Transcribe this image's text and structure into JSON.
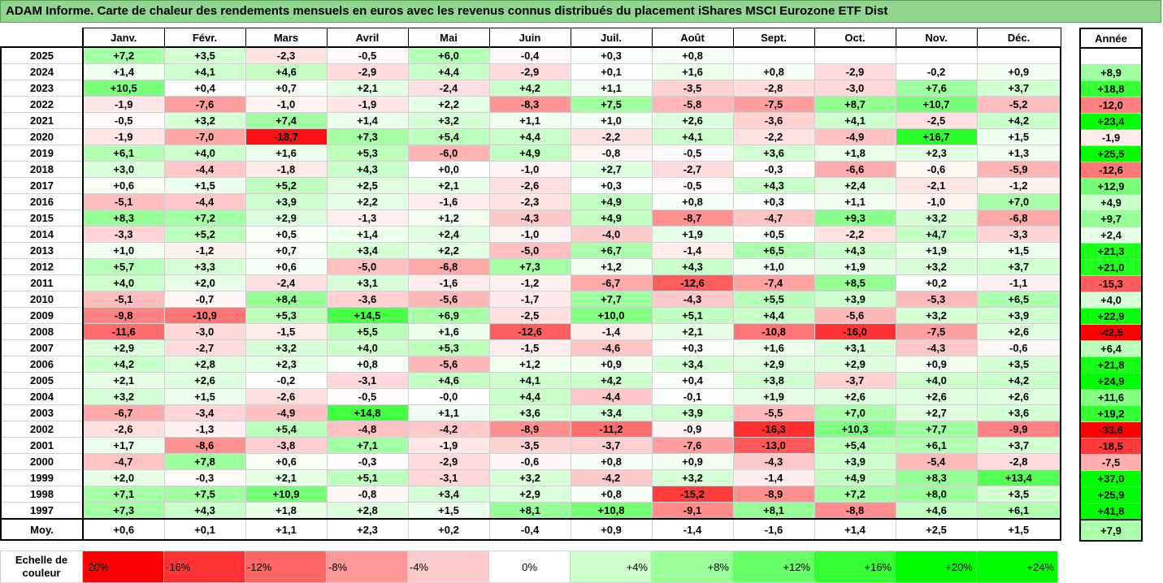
{
  "title": "ADAM Informe. Carte de chaleur des rendements mensuels en euros avec les revenus connus distribués du placement iShares MSCI Eurozone ETF Dist",
  "chart_data": {
    "type": "heatmap",
    "months": [
      "Janv.",
      "Févr.",
      "Mars",
      "Avril",
      "Mai",
      "Juin",
      "Juil.",
      "Août",
      "Sept.",
      "Oct.",
      "Nov.",
      "Déc."
    ],
    "annual_header": "Année",
    "rows": [
      {
        "year": "2025",
        "months": [
          "+7,2",
          "+3,5",
          "-2,3",
          "-0,5",
          "+6,0",
          "-0,4",
          "+0,3",
          "+0,8",
          "",
          "",
          "",
          ""
        ],
        "annual": ""
      },
      {
        "year": "2024",
        "months": [
          "+1,4",
          "+4,1",
          "+4,6",
          "-2,9",
          "+4,4",
          "-2,9",
          "+0,1",
          "+1,6",
          "+0,8",
          "-2,9",
          "-0,2",
          "+0,9"
        ],
        "annual": "+8,9"
      },
      {
        "year": "2023",
        "months": [
          "+10,5",
          "+0,4",
          "+0,7",
          "+2,1",
          "-2,4",
          "+4,2",
          "+1,1",
          "-3,5",
          "-2,8",
          "-3,0",
          "+7,6",
          "+3,7"
        ],
        "annual": "+18,8"
      },
      {
        "year": "2022",
        "months": [
          "-1,9",
          "-7,6",
          "-1,0",
          "-1,9",
          "+2,2",
          "-8,3",
          "+7,5",
          "-5,8",
          "-7,5",
          "+8,7",
          "+10,7",
          "-5,2"
        ],
        "annual": "-12,0"
      },
      {
        "year": "2021",
        "months": [
          "-0,5",
          "+3,2",
          "+7,4",
          "+1,4",
          "+3,2",
          "+1,1",
          "+1,0",
          "+2,6",
          "-3,6",
          "+4,1",
          "-2,5",
          "+4,2"
        ],
        "annual": "+23,4"
      },
      {
        "year": "2020",
        "months": [
          "-1,9",
          "-7,0",
          "-18,7",
          "+7,3",
          "+5,4",
          "+4,4",
          "-2,2",
          "+4,1",
          "-2,2",
          "-4,9",
          "+16,7",
          "+1,5"
        ],
        "annual": "-1,9"
      },
      {
        "year": "2019",
        "months": [
          "+6,1",
          "+4,0",
          "+1,6",
          "+5,3",
          "-6,0",
          "+4,9",
          "-0,8",
          "-0,5",
          "+3,6",
          "+1,8",
          "+2,3",
          "+1,3"
        ],
        "annual": "+25,5"
      },
      {
        "year": "2018",
        "months": [
          "+3,0",
          "-4,4",
          "-1,8",
          "+4,3",
          "+0,0",
          "-1,0",
          "+2,7",
          "-2,7",
          "-0,3",
          "-6,6",
          "-0,6",
          "-5,9"
        ],
        "annual": "-12,6"
      },
      {
        "year": "2017",
        "months": [
          "+0,6",
          "+1,5",
          "+5,2",
          "+2,5",
          "+2,1",
          "-2,6",
          "+0,3",
          "-0,5",
          "+4,3",
          "+2,4",
          "-2,1",
          "-1,2"
        ],
        "annual": "+12,9"
      },
      {
        "year": "2016",
        "months": [
          "-5,1",
          "-4,4",
          "+3,9",
          "+2,2",
          "-1,6",
          "-2,3",
          "+4,9",
          "+0,8",
          "+0,3",
          "+1,1",
          "-1,0",
          "+7,0"
        ],
        "annual": "+4,9"
      },
      {
        "year": "2015",
        "months": [
          "+8,3",
          "+7,2",
          "+2,9",
          "-1,3",
          "+1,2",
          "-4,3",
          "+4,9",
          "-8,7",
          "-4,7",
          "+9,3",
          "+3,2",
          "-6,8"
        ],
        "annual": "+9,7"
      },
      {
        "year": "2014",
        "months": [
          "-3,3",
          "+5,2",
          "+0,5",
          "+1,4",
          "+2,4",
          "-1,0",
          "-4,0",
          "+1,9",
          "+0,5",
          "-2,2",
          "+4,7",
          "-3,3"
        ],
        "annual": "+2,4"
      },
      {
        "year": "2013",
        "months": [
          "+1,0",
          "-1,2",
          "+0,7",
          "+3,4",
          "+2,2",
          "-5,0",
          "+6,7",
          "-1,4",
          "+6,5",
          "+4,3",
          "+1,9",
          "+1,5"
        ],
        "annual": "+21,3"
      },
      {
        "year": "2012",
        "months": [
          "+5,7",
          "+3,3",
          "+0,6",
          "-5,0",
          "-6,8",
          "+7,3",
          "+1,2",
          "+4,3",
          "+1,0",
          "+1,9",
          "+3,2",
          "+3,7"
        ],
        "annual": "+21,0"
      },
      {
        "year": "2011",
        "months": [
          "+4,0",
          "+2,0",
          "-2,4",
          "+3,1",
          "-1,6",
          "-1,2",
          "-6,7",
          "-12,6",
          "-7,4",
          "+8,5",
          "+0,2",
          "-1,1"
        ],
        "annual": "-15,3"
      },
      {
        "year": "2010",
        "months": [
          "-5,1",
          "-0,7",
          "+8,4",
          "-3,6",
          "-5,6",
          "-1,7",
          "+7,7",
          "-4,3",
          "+5,5",
          "+3,9",
          "-5,3",
          "+6,5"
        ],
        "annual": "+4,0"
      },
      {
        "year": "2009",
        "months": [
          "-9,8",
          "-10,9",
          "+5,3",
          "+14,5",
          "+6,9",
          "-2,5",
          "+10,0",
          "+5,1",
          "+4,4",
          "-5,6",
          "+3,2",
          "+3,9"
        ],
        "annual": "+22,9"
      },
      {
        "year": "2008",
        "months": [
          "-11,6",
          "-3,0",
          "-1,5",
          "+5,5",
          "+1,6",
          "-12,6",
          "-1,4",
          "+2,1",
          "-10,8",
          "-16,0",
          "-7,5",
          "+2,6"
        ],
        "annual": "-42,5"
      },
      {
        "year": "2007",
        "months": [
          "+2,9",
          "-2,7",
          "+3,2",
          "+4,0",
          "+5,3",
          "-1,5",
          "-4,6",
          "+0,3",
          "+1,6",
          "+3,1",
          "-4,3",
          "-0,6"
        ],
        "annual": "+6,4"
      },
      {
        "year": "2006",
        "months": [
          "+4,2",
          "+2,8",
          "+2,3",
          "+0,8",
          "-5,6",
          "+1,2",
          "+0,9",
          "+3,4",
          "+2,9",
          "+2,9",
          "+0,9",
          "+3,5"
        ],
        "annual": "+21,8"
      },
      {
        "year": "2005",
        "months": [
          "+2,1",
          "+2,6",
          "-0,2",
          "-3,1",
          "+4,6",
          "+4,1",
          "+4,2",
          "+0,4",
          "+3,8",
          "-3,7",
          "+4,0",
          "+4,2"
        ],
        "annual": "+24,9"
      },
      {
        "year": "2004",
        "months": [
          "+3,2",
          "+1,5",
          "-2,6",
          "-0,5",
          "-0,0",
          "+4,4",
          "-4,4",
          "-0,1",
          "+1,9",
          "+2,6",
          "+2,6",
          "+2,6"
        ],
        "annual": "+11,6"
      },
      {
        "year": "2003",
        "months": [
          "-6,7",
          "-3,4",
          "-4,9",
          "+14,8",
          "+1,1",
          "+3,6",
          "+3,4",
          "+3,9",
          "-5,5",
          "+7,0",
          "+2,7",
          "+3,6"
        ],
        "annual": "+19,2"
      },
      {
        "year": "2002",
        "months": [
          "-2,6",
          "-1,3",
          "+5,4",
          "-4,8",
          "-4,2",
          "-8,9",
          "-11,2",
          "-0,9",
          "-16,3",
          "+10,3",
          "+7,7",
          "-9,9"
        ],
        "annual": "-33,6"
      },
      {
        "year": "2001",
        "months": [
          "+1,7",
          "-8,6",
          "-3,8",
          "+7,1",
          "-1,9",
          "-3,5",
          "-3,7",
          "-7,6",
          "-13,0",
          "+5,4",
          "+6,1",
          "+3,7"
        ],
        "annual": "-18,5"
      },
      {
        "year": "2000",
        "months": [
          "-4,7",
          "+7,8",
          "+0,6",
          "-0,3",
          "-2,9",
          "-0,6",
          "+0,8",
          "+0,9",
          "-4,3",
          "+3,9",
          "-5,4",
          "-2,8"
        ],
        "annual": "-7,5"
      },
      {
        "year": "1999",
        "months": [
          "+2,0",
          "-0,3",
          "+2,1",
          "+5,1",
          "-3,1",
          "+3,2",
          "-4,2",
          "+3,2",
          "-1,4",
          "+4,9",
          "+8,3",
          "+13,4"
        ],
        "annual": "+37,0"
      },
      {
        "year": "1998",
        "months": [
          "+7,1",
          "+7,5",
          "+10,9",
          "-0,8",
          "+3,4",
          "+2,9",
          "+0,8",
          "-15,2",
          "-8,9",
          "+7,2",
          "+8,0",
          "+3,5"
        ],
        "annual": "+25,9"
      },
      {
        "year": "1997",
        "months": [
          "+7,3",
          "+4,3",
          "+1,8",
          "+2,8",
          "+1,5",
          "+8,1",
          "+10,8",
          "-9,1",
          "+8,1",
          "-8,8",
          "+4,6",
          "+6,1"
        ],
        "annual": "+41,8"
      }
    ],
    "average_label": "Moy.",
    "average_months": [
      "+0,6",
      "+0,1",
      "+1,1",
      "+2,3",
      "+0,2",
      "-0,4",
      "+0,9",
      "-1,4",
      "-1,6",
      "+1,4",
      "+2,5",
      "+1,5"
    ],
    "average_annual": "+7,9",
    "scale_label": "Echelle de couleur",
    "scale": [
      {
        "label": "-20%",
        "value": -20,
        "color": "#ff0000"
      },
      {
        "label": "-16%",
        "value": -16,
        "color": "#ff3333"
      },
      {
        "label": "-12%",
        "value": -12,
        "color": "#ff6666"
      },
      {
        "label": "-8%",
        "value": -8,
        "color": "#ff9999"
      },
      {
        "label": "-4%",
        "value": -4,
        "color": "#ffcccc"
      },
      {
        "label": "0%",
        "value": 0,
        "color": "#ffffff"
      },
      {
        "label": "+4%",
        "value": 4,
        "color": "#ccffcc"
      },
      {
        "label": "+8%",
        "value": 8,
        "color": "#99ff99"
      },
      {
        "label": "+12%",
        "value": 12,
        "color": "#66ff66"
      },
      {
        "label": "+16%",
        "value": 16,
        "color": "#33ff33"
      },
      {
        "label": "+20%",
        "value": 20,
        "color": "#00ff00"
      },
      {
        "label": "+24%",
        "value": 24,
        "color": "#00ff00"
      }
    ]
  }
}
